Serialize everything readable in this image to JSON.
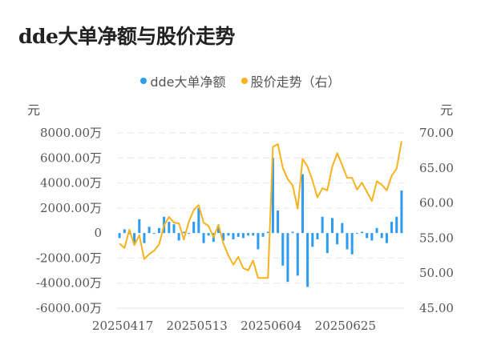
{
  "title": "dde大单净额与股价走势",
  "legend": [
    {
      "label": "dde大单净额",
      "color": "#2d9bef"
    },
    {
      "label": "股价走势（右）",
      "color": "#f7b21c"
    }
  ],
  "axis": {
    "left_unit": "元",
    "right_unit": "元",
    "left_ticks": [
      "8000.00万",
      "6000.00万",
      "4000.00万",
      "2000.00万",
      "0",
      "-2000.00万",
      "-4000.00万",
      "-6000.00万"
    ],
    "right_ticks": [
      "70.00",
      "65.00",
      "60.00",
      "55.00",
      "50.00",
      "45.00"
    ],
    "x_ticks": [
      "20250417",
      "20250513",
      "20250604",
      "20250625"
    ]
  },
  "chart_data": {
    "type": "bar+line",
    "title": "dde大单净额与股价走势",
    "xlabel": "",
    "ylabel_left": "元",
    "ylabel_right": "元",
    "ylim_left": [
      -6000,
      8000
    ],
    "ylim_right": [
      45,
      70
    ],
    "legend_position": "top",
    "grid": true,
    "x_tick_labels": [
      "20250417",
      "20250513",
      "20250604",
      "20250625"
    ],
    "series": [
      {
        "name": "dde大单净额",
        "type": "bar",
        "axis": "left",
        "unit": "万元",
        "values": [
          -400,
          300,
          -100,
          -900,
          1100,
          -800,
          500,
          0,
          400,
          1300,
          900,
          700,
          -600,
          100,
          0,
          900,
          2000,
          -800,
          -200,
          -700,
          600,
          -600,
          -200,
          -500,
          -300,
          -400,
          -200,
          -200,
          -1300,
          -300,
          100,
          6000,
          1800,
          -2600,
          -3900,
          100,
          -3400,
          4700,
          -4300,
          -1100,
          -500,
          1300,
          -1600,
          1200,
          -900,
          800,
          -1300,
          -1700,
          0,
          100,
          -400,
          -600,
          400,
          -400,
          -800,
          900,
          1300,
          3400
        ]
      },
      {
        "name": "股价走势（右）",
        "type": "line",
        "axis": "right",
        "unit": "元",
        "values": [
          54.2,
          53.6,
          56.2,
          54.0,
          55.4,
          52.0,
          52.7,
          53.2,
          54.1,
          56.8,
          58.0,
          57.2,
          57.1,
          54.8,
          57.3,
          59.0,
          59.7,
          57.2,
          56.7,
          55.1,
          56.9,
          54.2,
          52.5,
          51.2,
          52.3,
          50.7,
          50.4,
          51.8,
          49.3,
          49.3,
          49.3,
          68.0,
          68.4,
          65.0,
          63.4,
          62.5,
          59.2,
          66.3,
          65.2,
          63.2,
          60.8,
          62.1,
          61.8,
          65.2,
          67.1,
          65.4,
          63.6,
          63.6,
          61.9,
          62.9,
          61.6,
          60.3,
          63.1,
          62.6,
          61.8,
          63.9,
          64.9,
          68.8
        ]
      }
    ]
  }
}
